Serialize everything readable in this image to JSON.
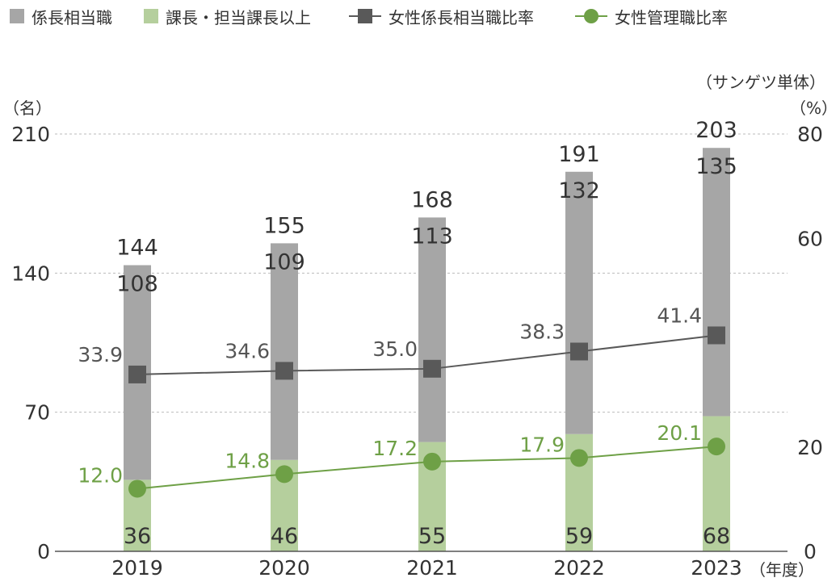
{
  "legend": [
    {
      "label": "係長相当職",
      "kind": "square",
      "color": "#a6a6a6"
    },
    {
      "label": "課長・担当課長以上",
      "kind": "square",
      "color": "#b5cf9d"
    },
    {
      "label": "女性係長相当職比率",
      "kind": "line-square",
      "color": "#595959"
    },
    {
      "label": "女性管理職比率",
      "kind": "line-circle",
      "color": "#6ea046"
    }
  ],
  "left_axis_unit": "（名）",
  "right_axis_unit": "（%）",
  "scope_note": "（サンゲツ単体）",
  "x_unit": "（年度）",
  "colors": {
    "gray_bar": "#a6a6a6",
    "green_bar": "#b5cf9d",
    "gray_line": "#595959",
    "green_line": "#6ea046",
    "text": "#333333",
    "grid": "#bbbbbb"
  },
  "chart_data": {
    "type": "bar",
    "categories": [
      "2019",
      "2020",
      "2021",
      "2022",
      "2023"
    ],
    "series": [
      {
        "name": "係長相当職",
        "values": [
          108,
          109,
          113,
          132,
          135
        ],
        "axis": "left",
        "stack": "main"
      },
      {
        "name": "課長・担当課長以上",
        "values": [
          36,
          46,
          55,
          59,
          68
        ],
        "axis": "left",
        "stack": "main"
      },
      {
        "name": "女性係長相当職比率",
        "values": [
          33.9,
          34.6,
          35.0,
          38.3,
          41.4
        ],
        "axis": "right",
        "type": "line",
        "marker": "square"
      },
      {
        "name": "女性管理職比率",
        "values": [
          12.0,
          14.8,
          17.2,
          17.9,
          20.1
        ],
        "axis": "right",
        "type": "line",
        "marker": "circle"
      }
    ],
    "totals": [
      144,
      155,
      168,
      191,
      203
    ],
    "left_axis": {
      "ylim": [
        0,
        210
      ],
      "ticks": [
        0,
        70,
        140,
        210
      ]
    },
    "right_axis": {
      "ylim": [
        0,
        80
      ],
      "ticks": [
        0,
        20,
        60,
        80
      ]
    },
    "grid": true,
    "legend_position": "top-left"
  }
}
